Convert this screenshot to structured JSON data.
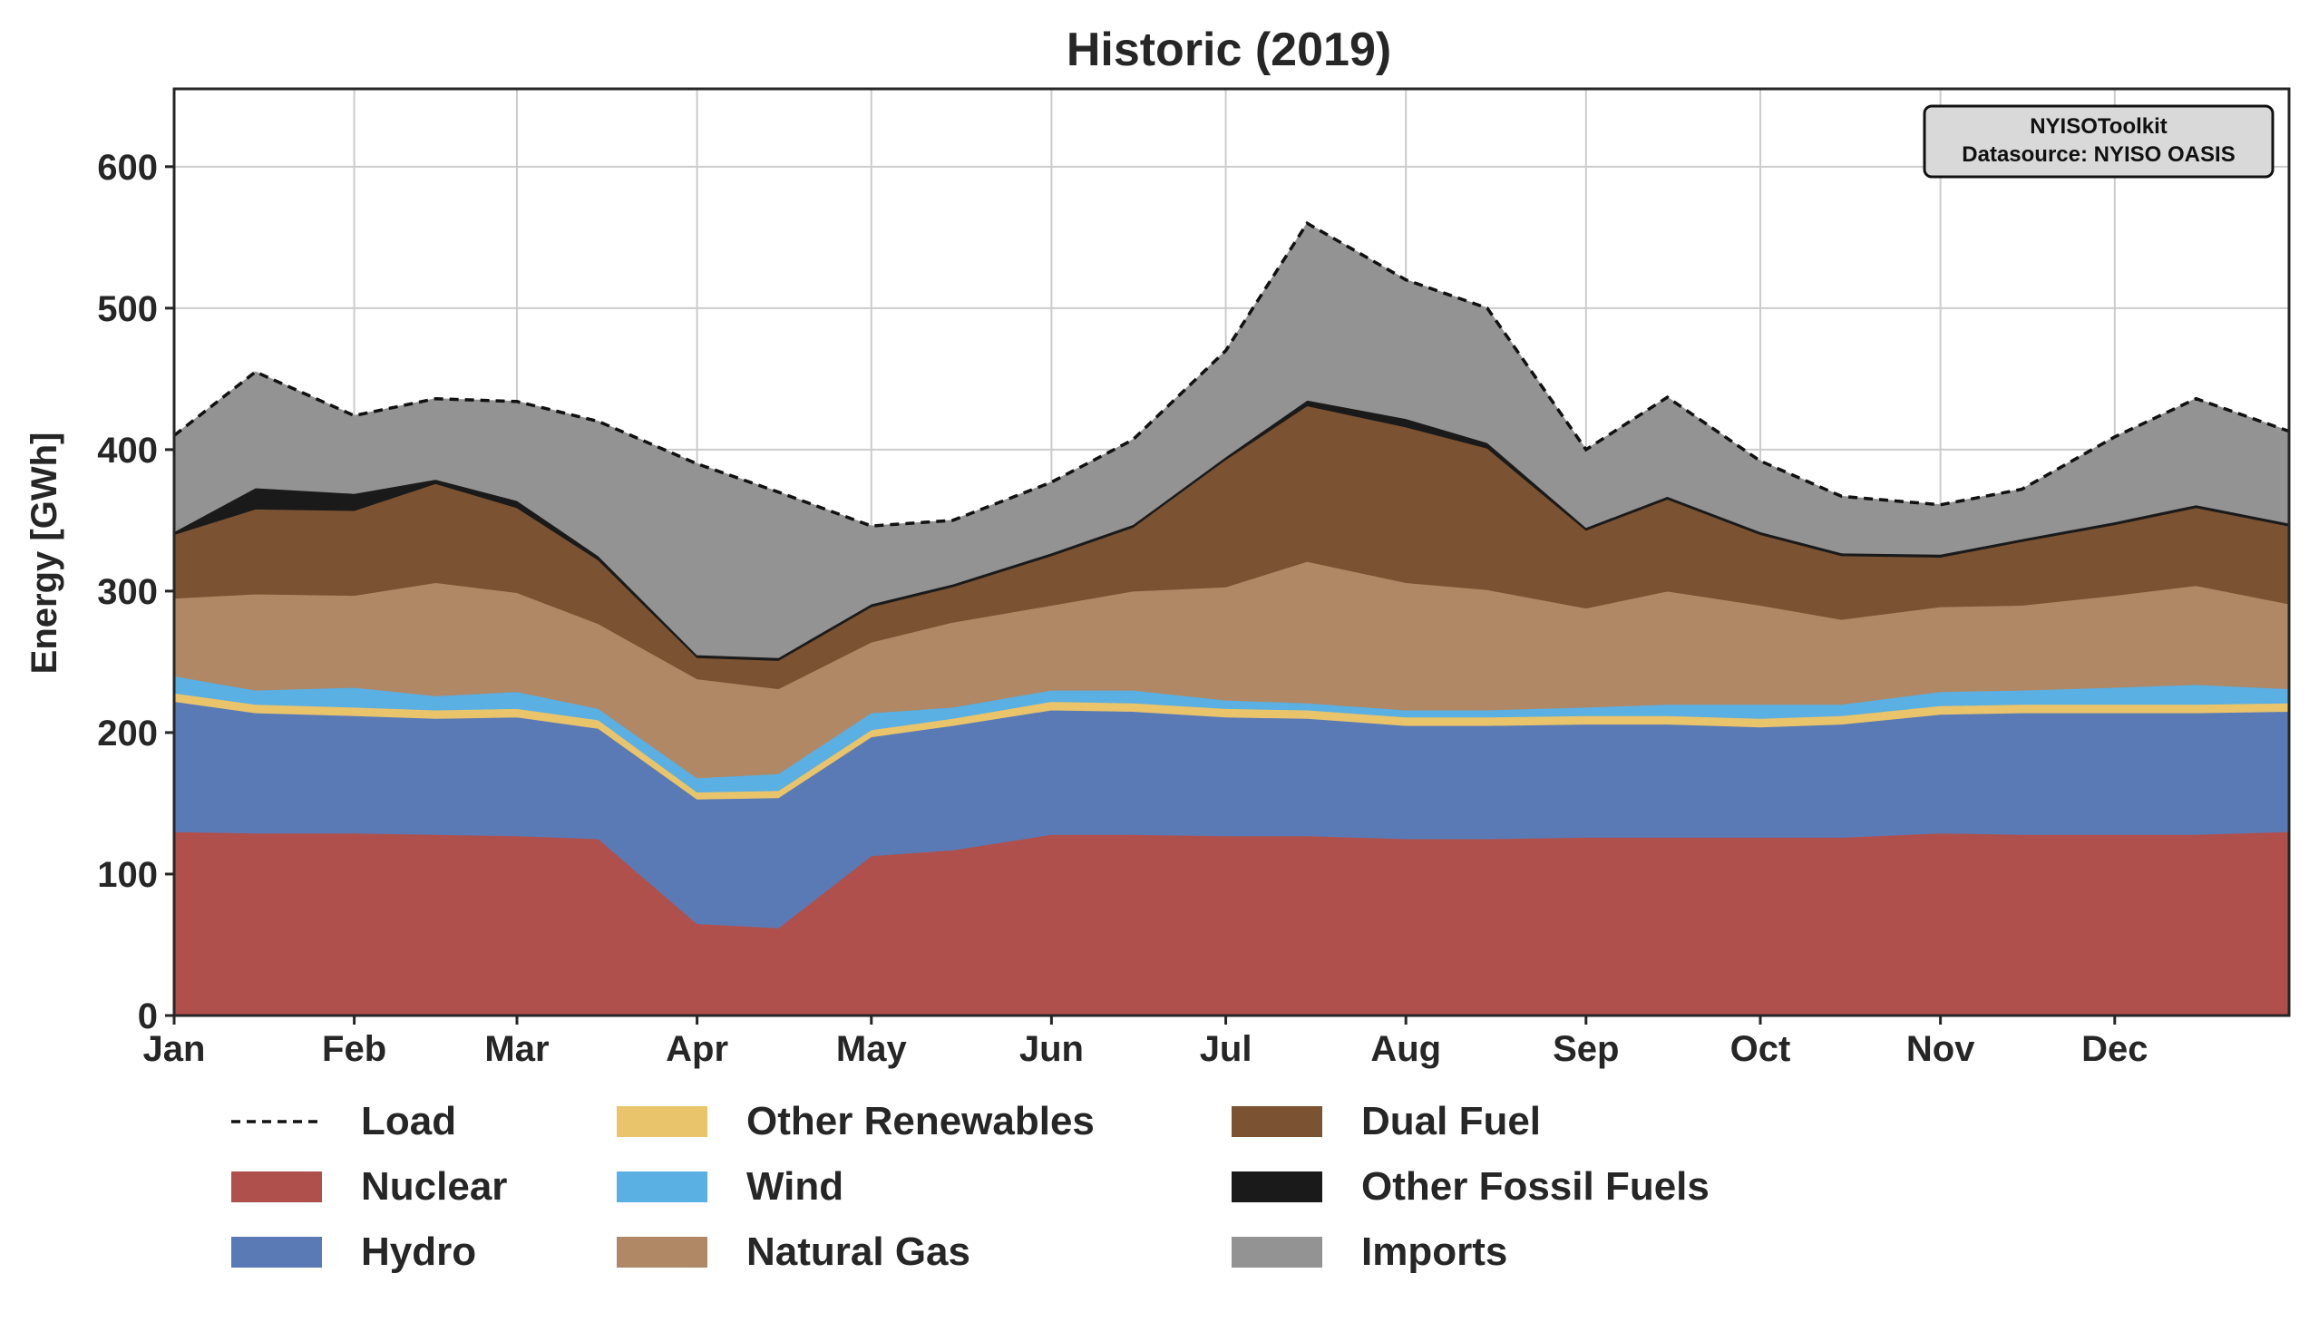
{
  "chart_data": {
    "type": "area",
    "title": "Historic (2019)",
    "ylabel": "Energy [GWh]",
    "xlabel": "",
    "ylim": [
      0,
      655
    ],
    "yticks": [
      0,
      100,
      200,
      300,
      400,
      500,
      600
    ],
    "month_ticks": [
      "Jan",
      "Feb",
      "Mar",
      "Apr",
      "May",
      "Jun",
      "Jul",
      "Aug",
      "Sep",
      "Oct",
      "Nov",
      "Dec"
    ],
    "grid": true,
    "legend_position": "bottom",
    "annotation": [
      "NYISOToolkit",
      "Datasource: NYISO OASIS"
    ],
    "x": [
      "2019-01-01",
      "2019-01-15",
      "2019-02-01",
      "2019-02-15",
      "2019-03-01",
      "2019-03-15",
      "2019-04-01",
      "2019-04-15",
      "2019-05-01",
      "2019-05-15",
      "2019-06-01",
      "2019-06-15",
      "2019-07-01",
      "2019-07-15",
      "2019-08-01",
      "2019-08-15",
      "2019-09-01",
      "2019-09-15",
      "2019-10-01",
      "2019-10-15",
      "2019-11-01",
      "2019-11-15",
      "2019-12-01",
      "2019-12-15",
      "2019-12-31"
    ],
    "series": [
      {
        "name": "Nuclear",
        "color": "#b0504c",
        "values": [
          130,
          129,
          129,
          128,
          127,
          125,
          65,
          62,
          113,
          117,
          128,
          128,
          127,
          127,
          125,
          125,
          126,
          126,
          126,
          126,
          129,
          128,
          128,
          128,
          130
        ]
      },
      {
        "name": "Hydro",
        "color": "#5a7ab6",
        "values": [
          92,
          85,
          83,
          82,
          84,
          78,
          88,
          92,
          84,
          88,
          88,
          87,
          84,
          83,
          80,
          80,
          80,
          80,
          78,
          80,
          84,
          86,
          86,
          86,
          85
        ]
      },
      {
        "name": "Other Renewables",
        "color": "#e9c46a",
        "values": [
          6,
          6,
          6,
          6,
          6,
          6,
          5,
          5,
          5,
          5,
          6,
          6,
          6,
          6,
          6,
          6,
          6,
          6,
          6,
          6,
          6,
          6,
          6,
          6,
          6
        ]
      },
      {
        "name": "Wind",
        "color": "#5aafe3",
        "values": [
          12,
          10,
          14,
          10,
          12,
          8,
          10,
          12,
          12,
          8,
          8,
          9,
          6,
          5,
          5,
          5,
          6,
          8,
          10,
          8,
          10,
          10,
          12,
          14,
          10
        ]
      },
      {
        "name": "Natural Gas",
        "color": "#b08865",
        "values": [
          55,
          68,
          65,
          80,
          70,
          60,
          70,
          60,
          50,
          60,
          60,
          70,
          80,
          100,
          90,
          85,
          70,
          80,
          70,
          60,
          60,
          60,
          65,
          70,
          60
        ]
      },
      {
        "name": "Dual Fuel",
        "color": "#7b5232",
        "values": [
          45,
          60,
          60,
          70,
          60,
          45,
          15,
          20,
          25,
          25,
          35,
          45,
          90,
          110,
          110,
          100,
          55,
          65,
          50,
          45,
          35,
          45,
          50,
          55,
          55
        ]
      },
      {
        "name": "Other Fossil Fuels",
        "color": "#1a1a1a",
        "values": [
          2,
          15,
          12,
          3,
          5,
          3,
          2,
          2,
          2,
          2,
          2,
          2,
          2,
          4,
          6,
          4,
          2,
          2,
          2,
          2,
          2,
          2,
          2,
          2,
          2
        ]
      },
      {
        "name": "Imports",
        "color": "#939393",
        "values": [
          68,
          82,
          55,
          57,
          70,
          95,
          135,
          117,
          55,
          45,
          50,
          60,
          75,
          125,
          98,
          95,
          55,
          70,
          50,
          40,
          35,
          35,
          60,
          75,
          65
        ]
      }
    ],
    "load": {
      "name": "Load",
      "values": [
        410,
        455,
        424,
        436,
        434,
        420,
        390,
        370,
        346,
        350,
        377,
        407,
        470,
        560,
        520,
        500,
        400,
        437,
        392,
        367,
        361,
        372,
        409,
        436,
        413
      ]
    }
  }
}
